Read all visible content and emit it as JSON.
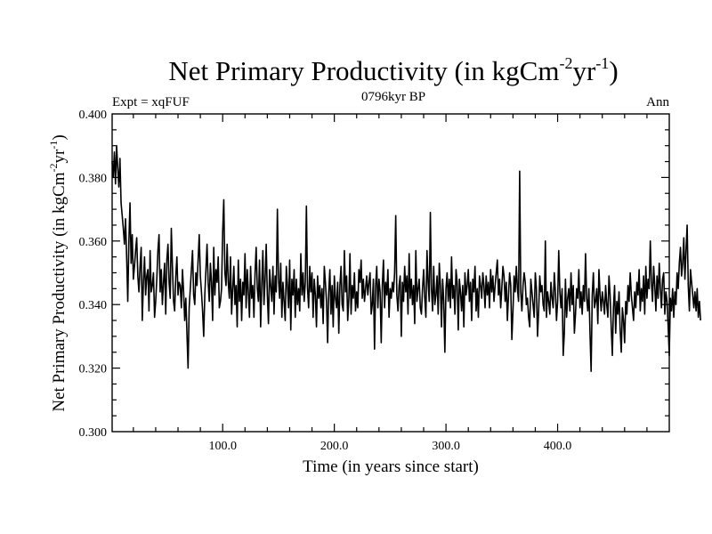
{
  "chart_data": {
    "type": "line",
    "title": {
      "main": "Net Primary Productivity (in kgCm",
      "sup1": "-2",
      "mid": "yr",
      "sup2": "-1",
      "end": ")"
    },
    "expt_label": "Expt = xqFUF",
    "subtitle": "0796kyr BP",
    "season_label": "Ann",
    "xlabel": "Time (in years since start)",
    "ylabel": {
      "main": "Net Primary Productivity (in kgCm",
      "sup1": "-2",
      "mid": "yr",
      "sup2": "-1",
      "end": ")"
    },
    "xlim": [
      1,
      500
    ],
    "ylim": [
      0.3,
      0.4
    ],
    "xticks_major": [
      100,
      200,
      300,
      400
    ],
    "xtick_labels": [
      "100.0",
      "200.0",
      "300.0",
      "400.0"
    ],
    "yticks_major": [
      0.3,
      0.32,
      0.34,
      0.36,
      0.38,
      0.4
    ],
    "ytick_labels": [
      "0.300",
      "0.320",
      "0.340",
      "0.360",
      "0.380",
      "0.400"
    ],
    "grid": false,
    "series": [
      {
        "name": "Net Primary Productivity",
        "color": "#000000",
        "x_start": 1,
        "x_step": 1,
        "values": [
          0.385,
          0.38,
          0.388,
          0.378,
          0.39,
          0.383,
          0.377,
          0.386,
          0.372,
          0.368,
          0.364,
          0.359,
          0.367,
          0.355,
          0.341,
          0.36,
          0.372,
          0.353,
          0.362,
          0.348,
          0.352,
          0.357,
          0.361,
          0.349,
          0.344,
          0.352,
          0.358,
          0.335,
          0.347,
          0.355,
          0.343,
          0.349,
          0.351,
          0.338,
          0.357,
          0.344,
          0.346,
          0.35,
          0.336,
          0.341,
          0.348,
          0.357,
          0.362,
          0.344,
          0.351,
          0.34,
          0.347,
          0.353,
          0.337,
          0.354,
          0.359,
          0.347,
          0.342,
          0.364,
          0.352,
          0.341,
          0.338,
          0.349,
          0.355,
          0.343,
          0.347,
          0.346,
          0.339,
          0.351,
          0.344,
          0.335,
          0.342,
          0.331,
          0.32,
          0.339,
          0.345,
          0.351,
          0.357,
          0.343,
          0.34,
          0.35,
          0.346,
          0.354,
          0.362,
          0.349,
          0.344,
          0.338,
          0.33,
          0.343,
          0.351,
          0.359,
          0.347,
          0.341,
          0.353,
          0.347,
          0.335,
          0.358,
          0.343,
          0.351,
          0.347,
          0.355,
          0.339,
          0.341,
          0.345,
          0.363,
          0.373,
          0.35,
          0.346,
          0.359,
          0.347,
          0.342,
          0.355,
          0.337,
          0.345,
          0.352,
          0.34,
          0.346,
          0.333,
          0.354,
          0.341,
          0.348,
          0.335,
          0.347,
          0.343,
          0.356,
          0.339,
          0.351,
          0.344,
          0.336,
          0.352,
          0.342,
          0.346,
          0.336,
          0.35,
          0.358,
          0.345,
          0.341,
          0.354,
          0.333,
          0.346,
          0.357,
          0.34,
          0.348,
          0.359,
          0.343,
          0.334,
          0.351,
          0.346,
          0.341,
          0.352,
          0.337,
          0.349,
          0.344,
          0.37,
          0.348,
          0.342,
          0.353,
          0.336,
          0.347,
          0.341,
          0.335,
          0.352,
          0.346,
          0.339,
          0.354,
          0.332,
          0.348,
          0.343,
          0.351,
          0.336,
          0.348,
          0.34,
          0.345,
          0.338,
          0.356,
          0.343,
          0.35,
          0.341,
          0.347,
          0.371,
          0.345,
          0.339,
          0.352,
          0.344,
          0.35,
          0.336,
          0.348,
          0.343,
          0.333,
          0.349,
          0.342,
          0.346,
          0.339,
          0.345,
          0.334,
          0.352,
          0.347,
          0.341,
          0.328,
          0.344,
          0.351,
          0.337,
          0.346,
          0.333,
          0.349,
          0.342,
          0.339,
          0.347,
          0.331,
          0.346,
          0.352,
          0.34,
          0.338,
          0.357,
          0.344,
          0.349,
          0.335,
          0.342,
          0.356,
          0.337,
          0.346,
          0.342,
          0.35,
          0.338,
          0.344,
          0.339,
          0.351,
          0.347,
          0.354,
          0.342,
          0.348,
          0.341,
          0.345,
          0.349,
          0.343,
          0.347,
          0.35,
          0.337,
          0.34,
          0.348,
          0.326,
          0.346,
          0.352,
          0.339,
          0.348,
          0.344,
          0.328,
          0.346,
          0.354,
          0.339,
          0.347,
          0.343,
          0.351,
          0.336,
          0.345,
          0.342,
          0.347,
          0.344,
          0.35,
          0.368,
          0.343,
          0.338,
          0.346,
          0.349,
          0.33,
          0.347,
          0.341,
          0.352,
          0.344,
          0.349,
          0.337,
          0.356,
          0.342,
          0.348,
          0.34,
          0.346,
          0.334,
          0.357,
          0.341,
          0.345,
          0.348,
          0.339,
          0.337,
          0.345,
          0.351,
          0.342,
          0.336,
          0.357,
          0.347,
          0.341,
          0.369,
          0.345,
          0.338,
          0.352,
          0.34,
          0.343,
          0.349,
          0.337,
          0.353,
          0.346,
          0.333,
          0.348,
          0.341,
          0.325,
          0.345,
          0.35,
          0.341,
          0.348,
          0.339,
          0.355,
          0.342,
          0.346,
          0.337,
          0.351,
          0.347,
          0.332,
          0.348,
          0.344,
          0.338,
          0.346,
          0.333,
          0.35,
          0.343,
          0.346,
          0.351,
          0.341,
          0.347,
          0.335,
          0.348,
          0.344,
          0.352,
          0.338,
          0.345,
          0.336,
          0.349,
          0.346,
          0.342,
          0.35,
          0.346,
          0.339,
          0.349,
          0.343,
          0.347,
          0.339,
          0.351,
          0.344,
          0.349,
          0.341,
          0.346,
          0.35,
          0.354,
          0.343,
          0.348,
          0.339,
          0.345,
          0.352,
          0.349,
          0.341,
          0.347,
          0.335,
          0.343,
          0.35,
          0.346,
          0.329,
          0.338,
          0.349,
          0.344,
          0.352,
          0.345,
          0.341,
          0.382,
          0.344,
          0.338,
          0.346,
          0.35,
          0.347,
          0.34,
          0.342,
          0.336,
          0.333,
          0.348,
          0.344,
          0.34,
          0.336,
          0.35,
          0.345,
          0.33,
          0.338,
          0.349,
          0.344,
          0.346,
          0.34,
          0.338,
          0.36,
          0.336,
          0.344,
          0.341,
          0.337,
          0.347,
          0.342,
          0.339,
          0.35,
          0.344,
          0.335,
          0.341,
          0.357,
          0.344,
          0.339,
          0.345,
          0.324,
          0.331,
          0.348,
          0.336,
          0.342,
          0.345,
          0.338,
          0.35,
          0.34,
          0.346,
          0.331,
          0.337,
          0.345,
          0.342,
          0.351,
          0.339,
          0.344,
          0.337,
          0.346,
          0.341,
          0.356,
          0.342,
          0.338,
          0.345,
          0.331,
          0.319,
          0.343,
          0.35,
          0.339,
          0.341,
          0.345,
          0.334,
          0.351,
          0.343,
          0.338,
          0.344,
          0.341,
          0.337,
          0.346,
          0.34,
          0.336,
          0.349,
          0.343,
          0.333,
          0.324,
          0.339,
          0.346,
          0.331,
          0.341,
          0.337,
          0.344,
          0.332,
          0.325,
          0.339,
          0.335,
          0.328,
          0.341,
          0.337,
          0.346,
          0.341,
          0.35,
          0.343,
          0.339,
          0.335,
          0.344,
          0.339,
          0.347,
          0.343,
          0.351,
          0.338,
          0.345,
          0.341,
          0.349,
          0.337,
          0.352,
          0.342,
          0.348,
          0.345,
          0.36,
          0.347,
          0.341,
          0.352,
          0.346,
          0.338,
          0.349,
          0.342,
          0.353,
          0.345,
          0.339,
          0.348,
          0.35,
          0.337,
          0.344,
          0.341,
          0.333,
          0.324,
          0.342,
          0.338,
          0.345,
          0.336,
          0.344,
          0.34,
          0.35,
          0.345,
          0.353,
          0.358,
          0.349,
          0.353,
          0.361,
          0.348,
          0.357,
          0.365,
          0.346,
          0.338,
          0.351,
          0.347,
          0.343,
          0.339,
          0.344,
          0.338,
          0.345,
          0.336,
          0.341,
          0.335
        ]
      }
    ]
  }
}
